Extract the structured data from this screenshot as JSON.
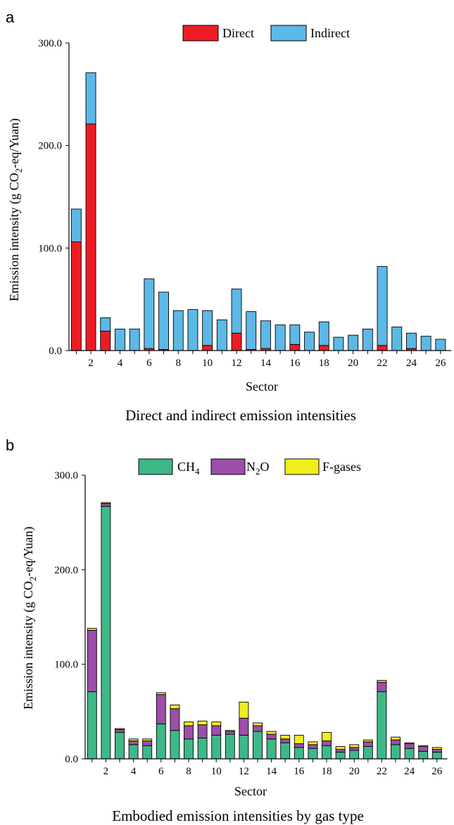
{
  "chart_data": [
    {
      "type": "bar",
      "stacked": true,
      "panel_label": "a",
      "title": "Direct and indirect emission intensities",
      "xlabel": "Sector",
      "ylabel": "Emission intensity  (g CO2-eq/Yuan)",
      "ylim": [
        0,
        300
      ],
      "yticks": [
        "0.0",
        "100.0",
        "200.0",
        "300.0"
      ],
      "xtick_labels": [
        "2",
        "4",
        "6",
        "8",
        "10",
        "12",
        "14",
        "16",
        "18",
        "20",
        "22",
        "24",
        "26"
      ],
      "legend_position": "top",
      "categories": [
        "1",
        "2",
        "3",
        "4",
        "5",
        "6",
        "7",
        "8",
        "9",
        "10",
        "11",
        "12",
        "13",
        "14",
        "15",
        "16",
        "17",
        "18",
        "19",
        "20",
        "21",
        "22",
        "23",
        "24",
        "25",
        "26"
      ],
      "series": [
        {
          "name": "Direct",
          "color": "#ed1c24",
          "values": [
            106,
            221,
            19,
            0,
            0,
            2,
            1,
            0,
            0,
            5,
            0,
            17,
            1,
            2,
            0,
            6,
            0,
            5,
            0,
            0,
            0,
            5,
            0,
            2,
            0,
            0
          ]
        },
        {
          "name": "Indirect",
          "color": "#5cb8e6",
          "values": [
            32,
            50,
            13,
            21,
            21,
            68,
            56,
            39,
            40,
            34,
            30,
            43,
            37,
            27,
            25,
            19,
            18,
            23,
            13,
            15,
            21,
            77,
            23,
            15,
            14,
            11
          ]
        }
      ]
    },
    {
      "type": "bar",
      "stacked": true,
      "panel_label": "b",
      "title": "Embodied emission intensities by gas type",
      "xlabel": "Sector",
      "ylabel": "Emission intensity  (g CO2-eq/Yuan)",
      "ylim": [
        0,
        300
      ],
      "yticks": [
        "0.0",
        "100.0",
        "200.0",
        "300.0"
      ],
      "xtick_labels": [
        "2",
        "4",
        "6",
        "8",
        "10",
        "12",
        "14",
        "16",
        "18",
        "20",
        "22",
        "24",
        "26"
      ],
      "legend_position": "top",
      "categories": [
        "1",
        "2",
        "3",
        "4",
        "5",
        "6",
        "7",
        "8",
        "9",
        "10",
        "11",
        "12",
        "13",
        "14",
        "15",
        "16",
        "17",
        "18",
        "19",
        "20",
        "21",
        "22",
        "23",
        "24",
        "25",
        "26"
      ],
      "series": [
        {
          "name": "CH4",
          "color": "#3db887",
          "values": [
            71,
            267,
            28,
            15,
            14,
            37,
            30,
            21,
            22,
            25,
            26,
            25,
            29,
            21,
            17,
            12,
            11,
            14,
            7,
            9,
            13,
            71,
            15,
            11,
            8,
            7
          ]
        },
        {
          "name": "N2O",
          "color": "#9b4fa8",
          "values": [
            65,
            3,
            3,
            4,
            5,
            31,
            23,
            14,
            14,
            10,
            3,
            18,
            6,
            5,
            4,
            4,
            4,
            5,
            3,
            3,
            5,
            10,
            5,
            5,
            5,
            3
          ]
        },
        {
          "name": "F-gases",
          "color": "#f2ed1e",
          "values": [
            2,
            1,
            1,
            2,
            2,
            2,
            4,
            4,
            4,
            4,
            1,
            17,
            3,
            3,
            4,
            9,
            3,
            9,
            3,
            3,
            2,
            2,
            3,
            1,
            1,
            2
          ]
        }
      ]
    }
  ]
}
